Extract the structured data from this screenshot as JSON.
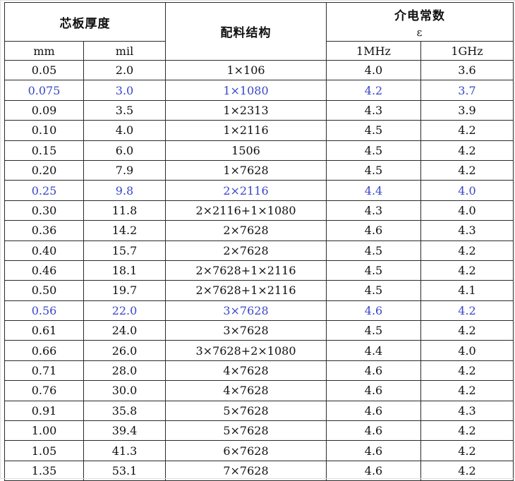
{
  "header": {
    "thickness": "芯板厚度",
    "structure": "配料结构",
    "dielectric": "介电常数",
    "epsilon": "ε",
    "mm": "mm",
    "mil": "mil",
    "f1": "1MHz",
    "f2": "1GHz"
  },
  "rows": [
    {
      "mm": "0.05",
      "mil": "2.0",
      "structure": "1×106",
      "e1": "4.0",
      "e2": "3.6",
      "highlight": false
    },
    {
      "mm": "0.075",
      "mil": "3.0",
      "structure": "1×1080",
      "e1": "4.2",
      "e2": "3.7",
      "highlight": true
    },
    {
      "mm": "0.09",
      "mil": "3.5",
      "structure": "1×2313",
      "e1": "4.3",
      "e2": "3.9",
      "highlight": false
    },
    {
      "mm": "0.10",
      "mil": "4.0",
      "structure": "1×2116",
      "e1": "4.5",
      "e2": "4.2",
      "highlight": false
    },
    {
      "mm": "0.15",
      "mil": "6.0",
      "structure": "1506",
      "e1": "4.5",
      "e2": "4.2",
      "highlight": false
    },
    {
      "mm": "0.20",
      "mil": "7.9",
      "structure": "1×7628",
      "e1": "4.5",
      "e2": "4.2",
      "highlight": false
    },
    {
      "mm": "0.25",
      "mil": "9.8",
      "structure": "2×2116",
      "e1": "4.4",
      "e2": "4.0",
      "highlight": true
    },
    {
      "mm": "0.30",
      "mil": "11.8",
      "structure": "2×2116+1×1080",
      "e1": "4.3",
      "e2": "4.0",
      "highlight": false
    },
    {
      "mm": "0.36",
      "mil": "14.2",
      "structure": "2×7628",
      "e1": "4.6",
      "e2": "4.3",
      "highlight": false
    },
    {
      "mm": "0.40",
      "mil": "15.7",
      "structure": "2×7628",
      "e1": "4.5",
      "e2": "4.2",
      "highlight": false
    },
    {
      "mm": "0.46",
      "mil": "18.1",
      "structure": "2×7628+1×2116",
      "e1": "4.5",
      "e2": "4.2",
      "highlight": false
    },
    {
      "mm": "0.50",
      "mil": "19.7",
      "structure": "2×7628+1×2116",
      "e1": "4.5",
      "e2": "4.1",
      "highlight": false
    },
    {
      "mm": "0.56",
      "mil": "22.0",
      "structure": "3×7628",
      "e1": "4.6",
      "e2": "4.2",
      "highlight": true
    },
    {
      "mm": "0.61",
      "mil": "24.0",
      "structure": "3×7628",
      "e1": "4.5",
      "e2": "4.2",
      "highlight": false
    },
    {
      "mm": "0.66",
      "mil": "26.0",
      "structure": "3×7628+2×1080",
      "e1": "4.4",
      "e2": "4.0",
      "highlight": false
    },
    {
      "mm": "0.71",
      "mil": "28.0",
      "structure": "4×7628",
      "e1": "4.6",
      "e2": "4.2",
      "highlight": false
    },
    {
      "mm": "0.76",
      "mil": "30.0",
      "structure": "4×7628",
      "e1": "4.6",
      "e2": "4.2",
      "highlight": false
    },
    {
      "mm": "0.91",
      "mil": "35.8",
      "structure": "5×7628",
      "e1": "4.6",
      "e2": "4.3",
      "highlight": false
    },
    {
      "mm": "1.00",
      "mil": "39.4",
      "structure": "5×7628",
      "e1": "4.6",
      "e2": "4.2",
      "highlight": false
    },
    {
      "mm": "1.05",
      "mil": "41.3",
      "structure": "6×7628",
      "e1": "4.6",
      "e2": "4.2",
      "highlight": false
    },
    {
      "mm": "1.35",
      "mil": "53.1",
      "structure": "7×7628",
      "e1": "4.6",
      "e2": "4.2",
      "highlight": false
    }
  ]
}
